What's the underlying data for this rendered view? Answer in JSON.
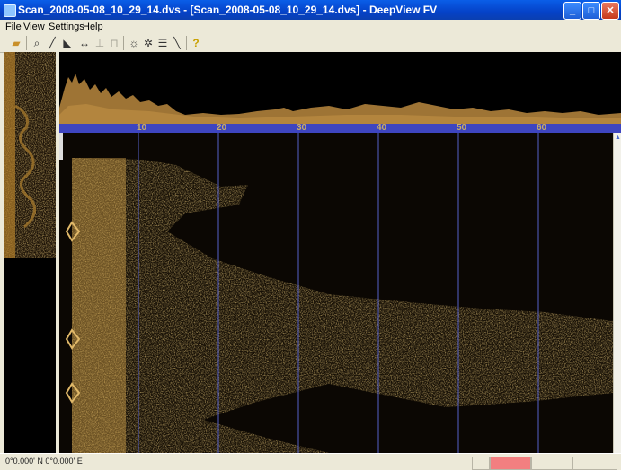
{
  "window": {
    "title": "Scan_2008-05-08_10_29_14.dvs - [Scan_2008-05-08_10_29_14.dvs] - DeepView FV"
  },
  "menu": {
    "items": [
      "File",
      "View",
      "Settings",
      "Help"
    ]
  },
  "ruler": {
    "labels": [
      "10",
      "20",
      "30",
      "40",
      "50",
      "60"
    ]
  },
  "status": {
    "coords": "0°0.000' N 0°0.000' E"
  },
  "colors": {
    "sonar": "#d4a33a",
    "gridline": "#5561c8",
    "ruler": "#3e45c0"
  },
  "toolbar": {
    "icons": [
      "open-folder-icon",
      "zoom-icon",
      "measure-line-icon",
      "bottom-profile-icon",
      "width-measure-icon",
      "height-marker-icon",
      "shadow-marker-icon",
      "brightness-icon",
      "contrast-icon",
      "grid-icon",
      "annotation-icon",
      "help-icon"
    ]
  }
}
